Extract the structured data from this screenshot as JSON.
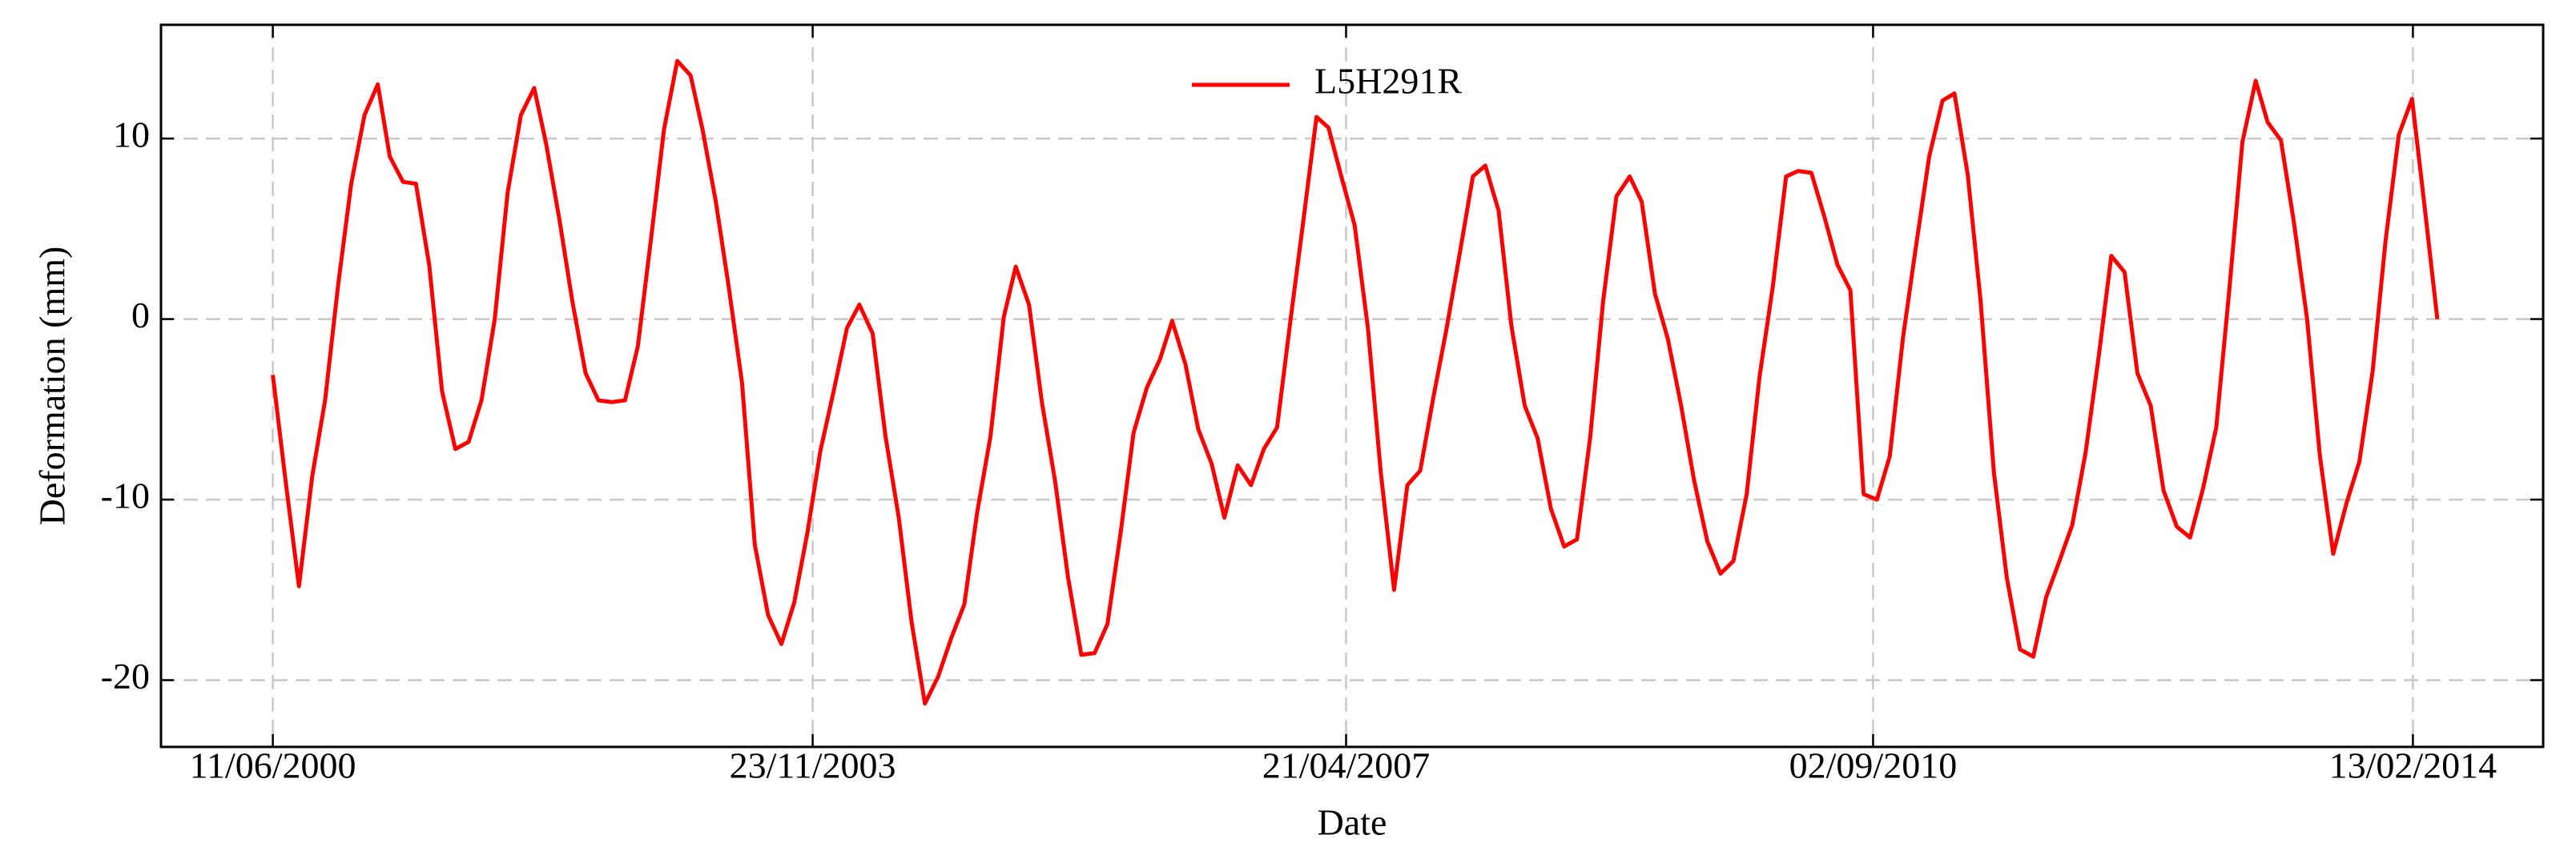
{
  "chart_data": {
    "type": "line",
    "xlabel": "Date",
    "ylabel": "Deformation (mm)",
    "x": [
      "2000-06-11",
      "2000-07-11",
      "2000-08-11",
      "2000-09-11",
      "2000-10-11",
      "2000-11-11",
      "2000-12-11",
      "2001-01-11",
      "2001-02-11",
      "2001-03-11",
      "2001-04-11",
      "2001-05-11",
      "2001-06-11",
      "2001-07-11",
      "2001-08-11",
      "2001-09-11",
      "2001-10-11",
      "2001-11-11",
      "2001-12-11",
      "2002-01-11",
      "2002-02-11",
      "2002-03-11",
      "2002-04-11",
      "2002-05-11",
      "2002-06-11",
      "2002-07-11",
      "2002-08-11",
      "2002-09-11",
      "2002-10-11",
      "2002-11-11",
      "2002-12-11",
      "2003-01-11",
      "2003-02-11",
      "2003-03-11",
      "2003-04-11",
      "2003-05-11",
      "2003-06-11",
      "2003-07-11",
      "2003-08-11",
      "2003-09-11",
      "2003-10-11",
      "2003-11-11",
      "2003-12-11",
      "2004-01-11",
      "2004-02-11",
      "2004-03-11",
      "2004-04-11",
      "2004-05-11",
      "2004-06-11",
      "2004-07-11",
      "2004-08-11",
      "2004-09-11",
      "2004-10-11",
      "2004-11-11",
      "2004-12-11",
      "2005-01-11",
      "2005-02-11",
      "2005-03-11",
      "2005-04-11",
      "2005-05-11",
      "2005-06-11",
      "2005-07-11",
      "2005-08-11",
      "2005-09-11",
      "2005-10-11",
      "2005-11-11",
      "2005-12-11",
      "2006-01-11",
      "2006-02-11",
      "2006-03-11",
      "2006-04-11",
      "2006-05-11",
      "2006-06-11",
      "2006-07-11",
      "2006-08-11",
      "2006-09-11",
      "2006-10-11",
      "2006-11-11",
      "2006-12-11",
      "2007-01-11",
      "2007-02-11",
      "2007-03-11",
      "2007-04-11",
      "2007-05-11",
      "2007-06-11",
      "2007-07-11",
      "2007-08-11",
      "2007-09-11",
      "2007-10-11",
      "2007-11-11",
      "2007-12-11",
      "2008-01-11",
      "2008-02-11",
      "2008-03-11",
      "2008-04-11",
      "2008-05-11",
      "2008-06-11",
      "2008-07-11",
      "2008-08-11",
      "2008-09-11",
      "2008-10-11",
      "2008-11-11",
      "2008-12-11",
      "2009-01-11",
      "2009-02-11",
      "2009-03-11",
      "2009-04-11",
      "2009-05-11",
      "2009-06-11",
      "2009-07-11",
      "2009-08-11",
      "2009-09-11",
      "2009-10-11",
      "2009-11-11",
      "2009-12-11",
      "2010-01-11",
      "2010-02-11",
      "2010-03-11",
      "2010-04-11",
      "2010-05-11",
      "2010-06-11",
      "2010-07-11",
      "2010-08-11",
      "2010-09-11",
      "2010-10-11",
      "2010-11-11",
      "2010-12-11",
      "2011-01-11",
      "2011-02-11",
      "2011-03-11",
      "2011-04-11",
      "2011-05-11",
      "2011-06-11",
      "2011-07-11",
      "2011-08-11",
      "2011-09-11",
      "2011-10-11",
      "2011-11-11",
      "2011-12-11",
      "2012-01-11",
      "2012-02-11",
      "2012-03-11",
      "2012-04-11",
      "2012-05-11",
      "2012-06-11",
      "2012-07-11",
      "2012-08-11",
      "2012-09-11",
      "2012-10-11",
      "2012-11-11",
      "2012-12-11",
      "2013-01-11",
      "2013-02-11",
      "2013-03-11",
      "2013-04-11",
      "2013-05-11",
      "2013-06-11",
      "2013-07-11",
      "2013-08-11",
      "2013-09-11",
      "2013-10-11",
      "2013-11-11",
      "2013-12-11",
      "2014-01-11",
      "2014-02-11",
      "2014-03-11",
      "2014-04-11"
    ],
    "series": [
      {
        "name": "L5H291R",
        "color": "#ff0000",
        "values": [
          -3.1,
          -9,
          -14.8,
          -8.7,
          -4.5,
          2,
          7.5,
          11.3,
          13,
          9,
          7.6,
          7.5,
          3,
          -4,
          -7.2,
          -6.8,
          -4.5,
          0,
          7,
          11.3,
          12.8,
          9.7,
          5.5,
          1,
          -3,
          -4.5,
          -4.6,
          -4.5,
          -1.5,
          4.5,
          10.5,
          14.3,
          13.5,
          10.5,
          6.5,
          1.8,
          -3.5,
          -12.5,
          -16.4,
          -18,
          -15.7,
          -11.8,
          -7.3,
          -4,
          -0.5,
          0.8,
          -0.8,
          -6.5,
          -11,
          -16.8,
          -21.3,
          -19.8,
          -17.7,
          -15.8,
          -10.7,
          -6.5,
          0.1,
          2.9,
          0.8,
          -4.6,
          -9,
          -14.3,
          -18.6,
          -18.5,
          -16.9,
          -11.8,
          -6.3,
          -3.8,
          -2.2,
          -0.1,
          -2.5,
          -6.1,
          -8,
          -11,
          -8.1,
          -9.2,
          -7.2,
          -6,
          -0.3,
          5.4,
          11.2,
          10.6,
          7.8,
          5.2,
          -0.5,
          -8.5,
          -15,
          -9.2,
          -8.4,
          -4.3,
          -0.6,
          3.6,
          7.9,
          8.5,
          6,
          -0.4,
          -4.8,
          -6.6,
          -10.5,
          -12.6,
          -12.2,
          -6.5,
          1,
          6.8,
          7.9,
          6.5,
          1.4,
          -1.1,
          -4.8,
          -8.9,
          -12.3,
          -14.1,
          -13.4,
          -9.7,
          -3.2,
          1.8,
          7.9,
          8.2,
          8.1,
          5.7,
          3,
          1.6,
          -9.7,
          -10,
          -7.6,
          -1,
          4,
          9,
          12.1,
          12.5,
          8,
          1,
          -8.5,
          -14.3,
          -18.3,
          -18.7,
          -15.4,
          -13.4,
          -11.4,
          -7.4,
          -2,
          3.5,
          2.6,
          -3,
          -4.8,
          -9.5,
          -11.5,
          -12.1,
          -9.4,
          -6,
          1.5,
          9.8,
          13.2,
          10.9,
          9.9,
          5.4,
          0,
          -7.6,
          -13,
          -10.2,
          -7.9,
          -2.9,
          4.3,
          10.2,
          12.2,
          6.5,
          0
        ]
      }
    ],
    "xlim": [
      "1999-09-24",
      "2014-12-14"
    ],
    "xticks": [
      {
        "value": "2000-06-11",
        "label": "11/06/2000"
      },
      {
        "value": "2003-11-23",
        "label": "23/11/2003"
      },
      {
        "value": "2007-04-21",
        "label": "21/04/2007"
      },
      {
        "value": "2010-09-02",
        "label": "02/09/2010"
      },
      {
        "value": "2014-02-13",
        "label": "13/02/2014"
      }
    ],
    "ylim": [
      -23.7,
      16.3
    ],
    "yticks": [
      -20,
      -10,
      0,
      10
    ],
    "grid": true,
    "legend": "upper center"
  }
}
